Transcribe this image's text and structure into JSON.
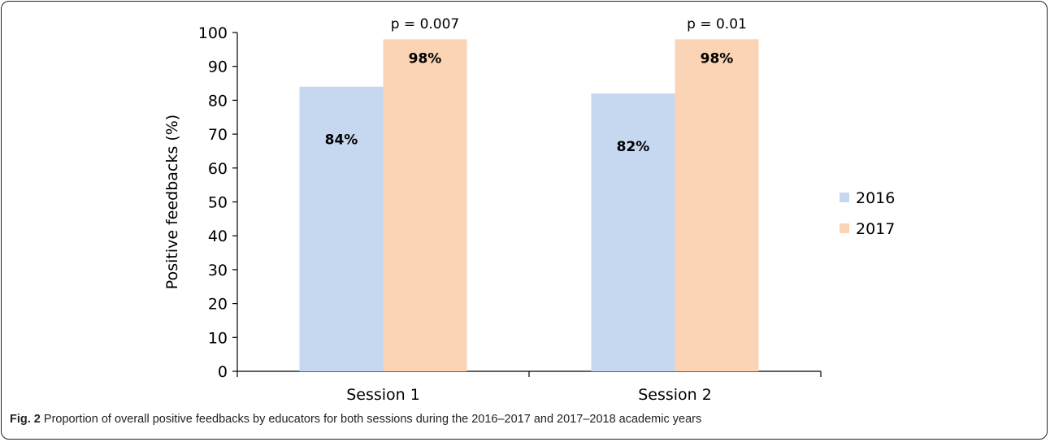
{
  "chart_data": {
    "type": "bar",
    "categories": [
      "Session 1",
      "Session 2"
    ],
    "series": [
      {
        "name": "2016",
        "values": [
          84,
          82
        ],
        "labels": [
          "84%",
          "82%"
        ],
        "color": "#c6d7f0"
      },
      {
        "name": "2017",
        "values": [
          98,
          98
        ],
        "labels": [
          "98%",
          "98%"
        ],
        "color": "#fad4b4"
      }
    ],
    "ylabel": "Positive feedbacks (%)",
    "xlabel": "",
    "ylim": [
      0,
      100
    ],
    "yticks": [
      0,
      10,
      20,
      30,
      40,
      50,
      60,
      70,
      80,
      90,
      100
    ],
    "annotations": [
      "p = 0.007",
      "p = 0.01"
    ],
    "legend_position": "right",
    "grid": false
  },
  "caption": {
    "label": "Fig. 2",
    "text": " Proportion of overall positive feedbacks by educators for both sessions during the 2016–2017 and 2017–2018 academic years"
  }
}
